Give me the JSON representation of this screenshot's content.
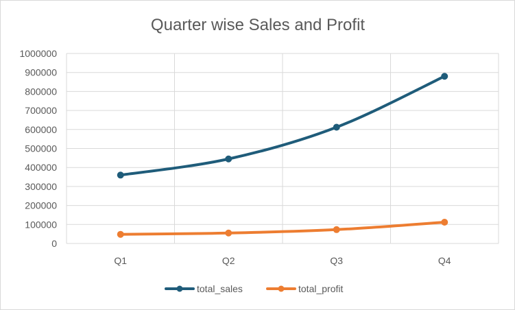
{
  "chart_data": {
    "type": "line",
    "title": "Quarter wise Sales and Profit",
    "categories": [
      "Q1",
      "Q2",
      "Q3",
      "Q4"
    ],
    "series": [
      {
        "name": "total_sales",
        "color": "#1f5c7a",
        "values": [
          360000,
          445000,
          612000,
          880000
        ]
      },
      {
        "name": "total_profit",
        "color": "#ed7d31",
        "values": [
          48000,
          55000,
          73000,
          112000
        ]
      }
    ],
    "y_ticks": [
      "0",
      "100000",
      "200000",
      "300000",
      "400000",
      "500000",
      "600000",
      "700000",
      "800000",
      "900000",
      "1000000"
    ],
    "ylim": [
      0,
      1000000
    ],
    "grid": true,
    "legend": "bottom",
    "xlabel": "",
    "ylabel": ""
  }
}
